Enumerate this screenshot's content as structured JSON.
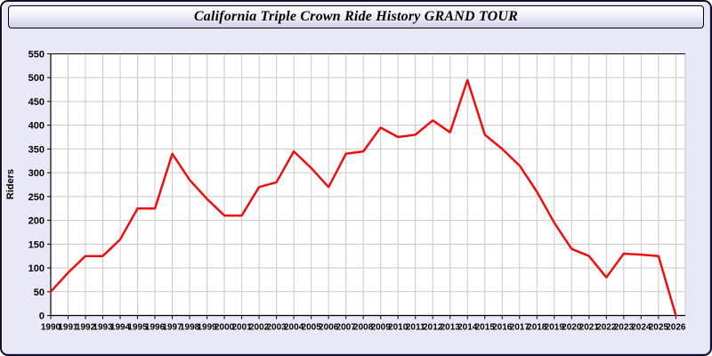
{
  "header": {
    "title": "California Triple Crown Ride History GRAND TOUR"
  },
  "colors": {
    "window_background": "#e8e8f6",
    "window_border": "#10102e",
    "plot_background": "#ffffff",
    "grid": "#c9c9c9",
    "axis": "#000000",
    "line": "#ee0e0e"
  },
  "chart_data": {
    "type": "line",
    "title": "California Triple Crown Ride History GRAND TOUR",
    "xlabel": "",
    "ylabel": "Riders",
    "x": [
      1990,
      1991,
      1992,
      1993,
      1994,
      1995,
      1996,
      1997,
      1998,
      1999,
      2000,
      2001,
      2002,
      2003,
      2004,
      2005,
      2006,
      2007,
      2008,
      2009,
      2010,
      2011,
      2012,
      2013,
      2014,
      2015,
      2016,
      2017,
      2018,
      2019,
      2020,
      2021,
      2022,
      2023,
      2024,
      2025,
      2026
    ],
    "series": [
      {
        "name": "Riders",
        "color": "#ee0e0e",
        "values": [
          50,
          90,
          125,
          125,
          160,
          225,
          225,
          340,
          285,
          245,
          210,
          210,
          270,
          280,
          345,
          310,
          270,
          340,
          345,
          395,
          375,
          380,
          410,
          385,
          495,
          380,
          350,
          315,
          260,
          195,
          140,
          125,
          80,
          130,
          128,
          125,
          0
        ]
      }
    ],
    "ylim": [
      0,
      550
    ],
    "ytick_step": 50,
    "grid": true,
    "legend": "none"
  }
}
